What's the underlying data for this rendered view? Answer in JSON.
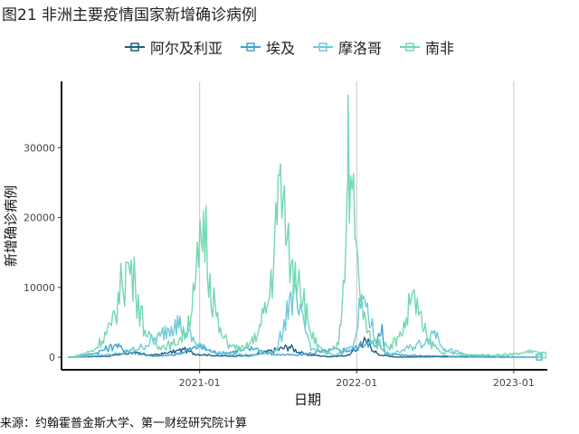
{
  "figure": {
    "title": "图21 非洲主要疫情国家新增确诊病例",
    "source": "来源：约翰霍普金斯大学、第一财经研究院计算"
  },
  "chart_data": {
    "type": "line",
    "xlabel": "日期",
    "ylabel": "新增确诊病例",
    "x_ticks": [
      "2021-01",
      "2022-01",
      "2023-01"
    ],
    "y_ticks": [
      0,
      10000,
      20000,
      30000
    ],
    "xlim": [
      "2020-02-15",
      "2023-03-20"
    ],
    "ylim": [
      -1800,
      39500
    ],
    "grid": "vertical major only",
    "legend_position": "top",
    "series": [
      {
        "name": "阿尔及利亚",
        "color": "#1f5f86",
        "points": [
          [
            "2020-03-01",
            0
          ],
          [
            "2020-06-01",
            150
          ],
          [
            "2020-07-25",
            650
          ],
          [
            "2020-09-15",
            280
          ],
          [
            "2020-10-20",
            600
          ],
          [
            "2020-11-25",
            1100
          ],
          [
            "2020-12-20",
            500
          ],
          [
            "2021-02-15",
            180
          ],
          [
            "2021-05-01",
            200
          ],
          [
            "2021-07-28",
            1500
          ],
          [
            "2021-09-01",
            400
          ],
          [
            "2021-11-01",
            80
          ],
          [
            "2021-12-15",
            300
          ],
          [
            "2022-01-22",
            2400
          ],
          [
            "2022-02-20",
            400
          ],
          [
            "2022-04-01",
            20
          ],
          [
            "2022-07-01",
            80
          ],
          [
            "2023-03-01",
            5
          ]
        ]
      },
      {
        "name": "埃及",
        "color": "#3fa4cf",
        "points": [
          [
            "2020-03-01",
            0
          ],
          [
            "2020-05-01",
            500
          ],
          [
            "2020-06-18",
            1700
          ],
          [
            "2020-07-20",
            800
          ],
          [
            "2020-09-15",
            120
          ],
          [
            "2020-11-01",
            300
          ],
          [
            "2020-12-30",
            1500
          ],
          [
            "2021-02-15",
            500
          ],
          [
            "2021-04-10",
            1000
          ],
          [
            "2021-05-10",
            1250
          ],
          [
            "2021-06-20",
            400
          ],
          [
            "2021-08-15",
            300
          ],
          [
            "2021-11-20",
            1100
          ],
          [
            "2021-12-20",
            1000
          ],
          [
            "2022-01-25",
            2200
          ],
          [
            "2022-02-15",
            1500
          ],
          [
            "2022-03-01",
            4700
          ],
          [
            "2022-03-08",
            500
          ],
          [
            "2022-04-01",
            400
          ],
          [
            "2022-06-01",
            200
          ],
          [
            "2023-03-01",
            0
          ]
        ]
      },
      {
        "name": "摩洛哥",
        "color": "#6fcad8",
        "points": [
          [
            "2020-03-01",
            0
          ],
          [
            "2020-07-01",
            500
          ],
          [
            "2020-08-20",
            1500
          ],
          [
            "2020-10-01",
            3000
          ],
          [
            "2020-11-05",
            5400
          ],
          [
            "2020-11-25",
            4000
          ],
          [
            "2020-12-20",
            2200
          ],
          [
            "2021-01-20",
            1000
          ],
          [
            "2021-03-01",
            450
          ],
          [
            "2021-05-15",
            300
          ],
          [
            "2021-07-01",
            1000
          ],
          [
            "2021-08-01",
            9400
          ],
          [
            "2021-08-20",
            6000
          ],
          [
            "2021-09-20",
            1200
          ],
          [
            "2021-11-10",
            250
          ],
          [
            "2021-12-20",
            1500
          ],
          [
            "2022-01-10",
            7000
          ],
          [
            "2022-01-20",
            8200
          ],
          [
            "2022-02-15",
            2000
          ],
          [
            "2022-03-20",
            300
          ],
          [
            "2022-06-10",
            2200
          ],
          [
            "2022-07-01",
            3800
          ],
          [
            "2022-07-25",
            1200
          ],
          [
            "2022-09-15",
            300
          ],
          [
            "2023-03-01",
            0
          ]
        ]
      },
      {
        "name": "南非",
        "color": "#74d8b1",
        "points": [
          [
            "2020-03-10",
            0
          ],
          [
            "2020-05-01",
            1000
          ],
          [
            "2020-06-10",
            4500
          ],
          [
            "2020-07-05",
            10500
          ],
          [
            "2020-07-20",
            13500
          ],
          [
            "2020-08-05",
            10000
          ],
          [
            "2020-08-30",
            3000
          ],
          [
            "2020-09-30",
            1500
          ],
          [
            "2020-10-30",
            1800
          ],
          [
            "2020-11-30",
            3500
          ],
          [
            "2020-12-20",
            9500
          ],
          [
            "2021-01-05",
            16500
          ],
          [
            "2021-01-10",
            21000
          ],
          [
            "2021-01-25",
            12000
          ],
          [
            "2021-02-15",
            3500
          ],
          [
            "2021-03-15",
            1500
          ],
          [
            "2021-04-15",
            1200
          ],
          [
            "2021-05-15",
            3000
          ],
          [
            "2021-06-10",
            8000
          ],
          [
            "2021-06-30",
            19000
          ],
          [
            "2021-07-05",
            26000
          ],
          [
            "2021-07-20",
            16000
          ],
          [
            "2021-08-05",
            14000
          ],
          [
            "2021-08-20",
            12500
          ],
          [
            "2021-09-10",
            5000
          ],
          [
            "2021-10-01",
            1500
          ],
          [
            "2021-10-25",
            400
          ],
          [
            "2021-11-20",
            1800
          ],
          [
            "2021-12-01",
            11000
          ],
          [
            "2021-12-10",
            24000
          ],
          [
            "2021-12-12",
            37500
          ],
          [
            "2021-12-18",
            26000
          ],
          [
            "2021-12-28",
            17000
          ],
          [
            "2022-01-10",
            8000
          ],
          [
            "2022-01-25",
            3500
          ],
          [
            "2022-02-15",
            2000
          ],
          [
            "2022-03-15",
            1500
          ],
          [
            "2022-04-15",
            3000
          ],
          [
            "2022-05-05",
            7500
          ],
          [
            "2022-05-12",
            9500
          ],
          [
            "2022-05-25",
            6000
          ],
          [
            "2022-06-15",
            2500
          ],
          [
            "2022-07-15",
            800
          ],
          [
            "2022-09-01",
            400
          ],
          [
            "2022-11-15",
            300
          ],
          [
            "2023-01-10",
            500
          ],
          [
            "2023-02-15",
            900
          ],
          [
            "2023-03-10",
            300
          ]
        ]
      }
    ]
  }
}
